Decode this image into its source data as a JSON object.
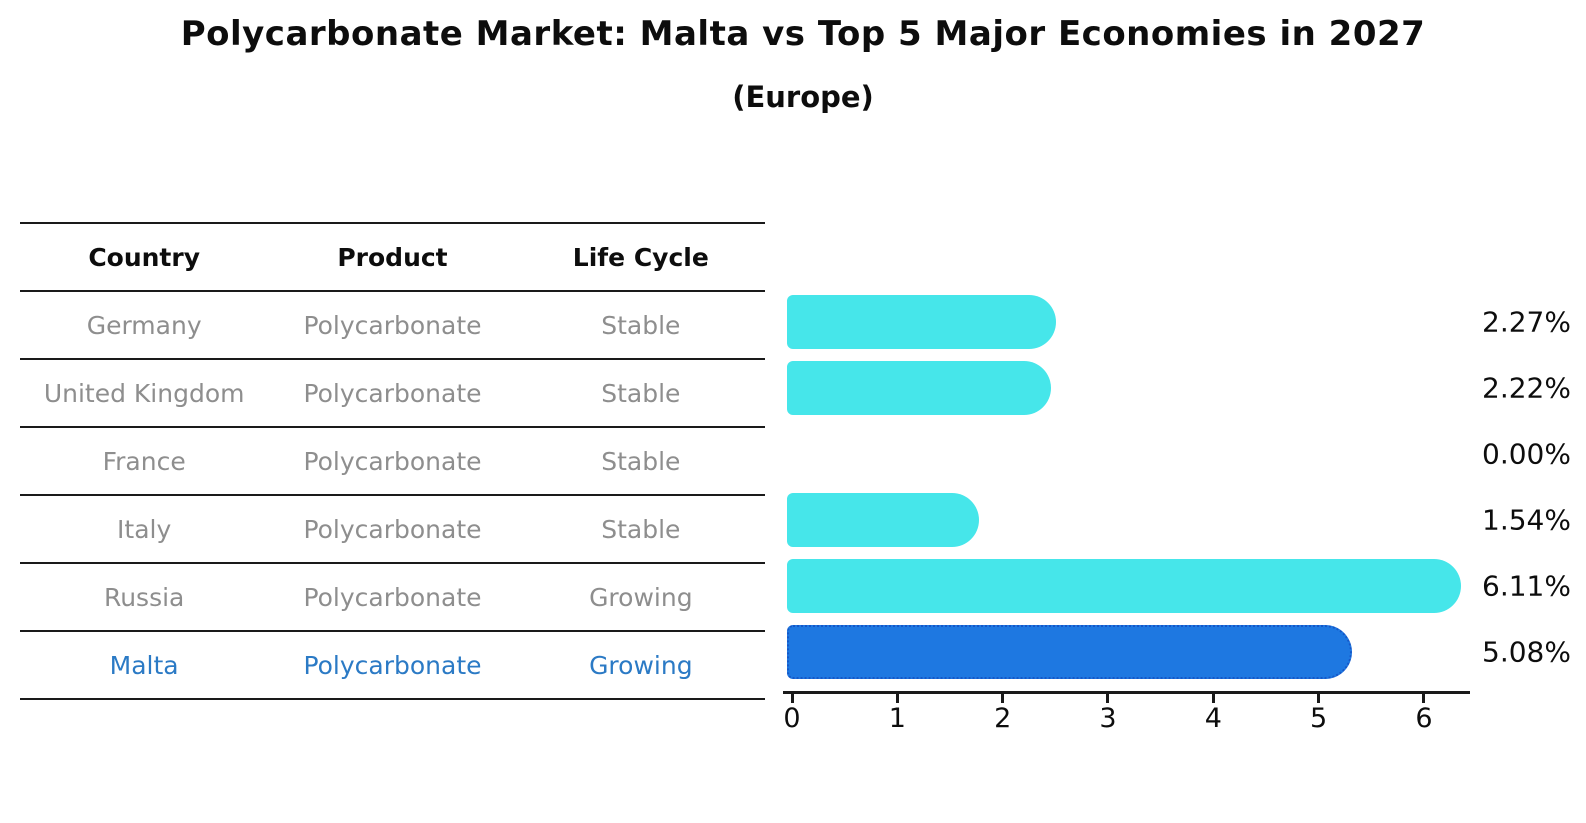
{
  "title": "Polycarbonate Market: Malta vs Top 5 Major Economies in 2027",
  "subtitle": "(Europe)",
  "table": {
    "headers": [
      "Country",
      "Product",
      "Life Cycle"
    ],
    "rows": [
      {
        "country": "Germany",
        "product": "Polycarbonate",
        "life_cycle": "Stable",
        "highlighted": false
      },
      {
        "country": "United Kingdom",
        "product": "Polycarbonate",
        "life_cycle": "Stable",
        "highlighted": false
      },
      {
        "country": "France",
        "product": "Polycarbonate",
        "life_cycle": "Stable",
        "highlighted": false
      },
      {
        "country": "Italy",
        "product": "Polycarbonate",
        "life_cycle": "Stable",
        "highlighted": false
      },
      {
        "country": "Russia",
        "product": "Polycarbonate",
        "life_cycle": "Growing",
        "highlighted": false
      },
      {
        "country": "Malta",
        "product": "Polycarbonate",
        "life_cycle": "Growing",
        "highlighted": true
      }
    ]
  },
  "chart_data": {
    "type": "bar",
    "orientation": "horizontal",
    "title": "Polycarbonate Market: Malta vs Top 5 Major Economies in 2027",
    "subtitle": "(Europe)",
    "categories": [
      "Germany",
      "United Kingdom",
      "France",
      "Italy",
      "Russia",
      "Malta"
    ],
    "values": [
      2.27,
      2.22,
      0.0,
      1.54,
      6.11,
      5.08
    ],
    "value_labels": [
      "2.27%",
      "2.22%",
      "0.00%",
      "1.54%",
      "6.11%",
      "5.08%"
    ],
    "highlight_index": 5,
    "xlim": [
      0,
      6.45
    ],
    "x_ticks": [
      0,
      1,
      2,
      3,
      4,
      5,
      6
    ],
    "grid": false,
    "legend": false,
    "colors": {
      "bar_default": "#46E6EA",
      "bar_highlight": "#1E78E1",
      "bar_highlight_border": "#1557C8",
      "highlight_text": "#2B7AC5",
      "table_text": "#8E8E8E",
      "line": "#1A1A1A"
    }
  }
}
